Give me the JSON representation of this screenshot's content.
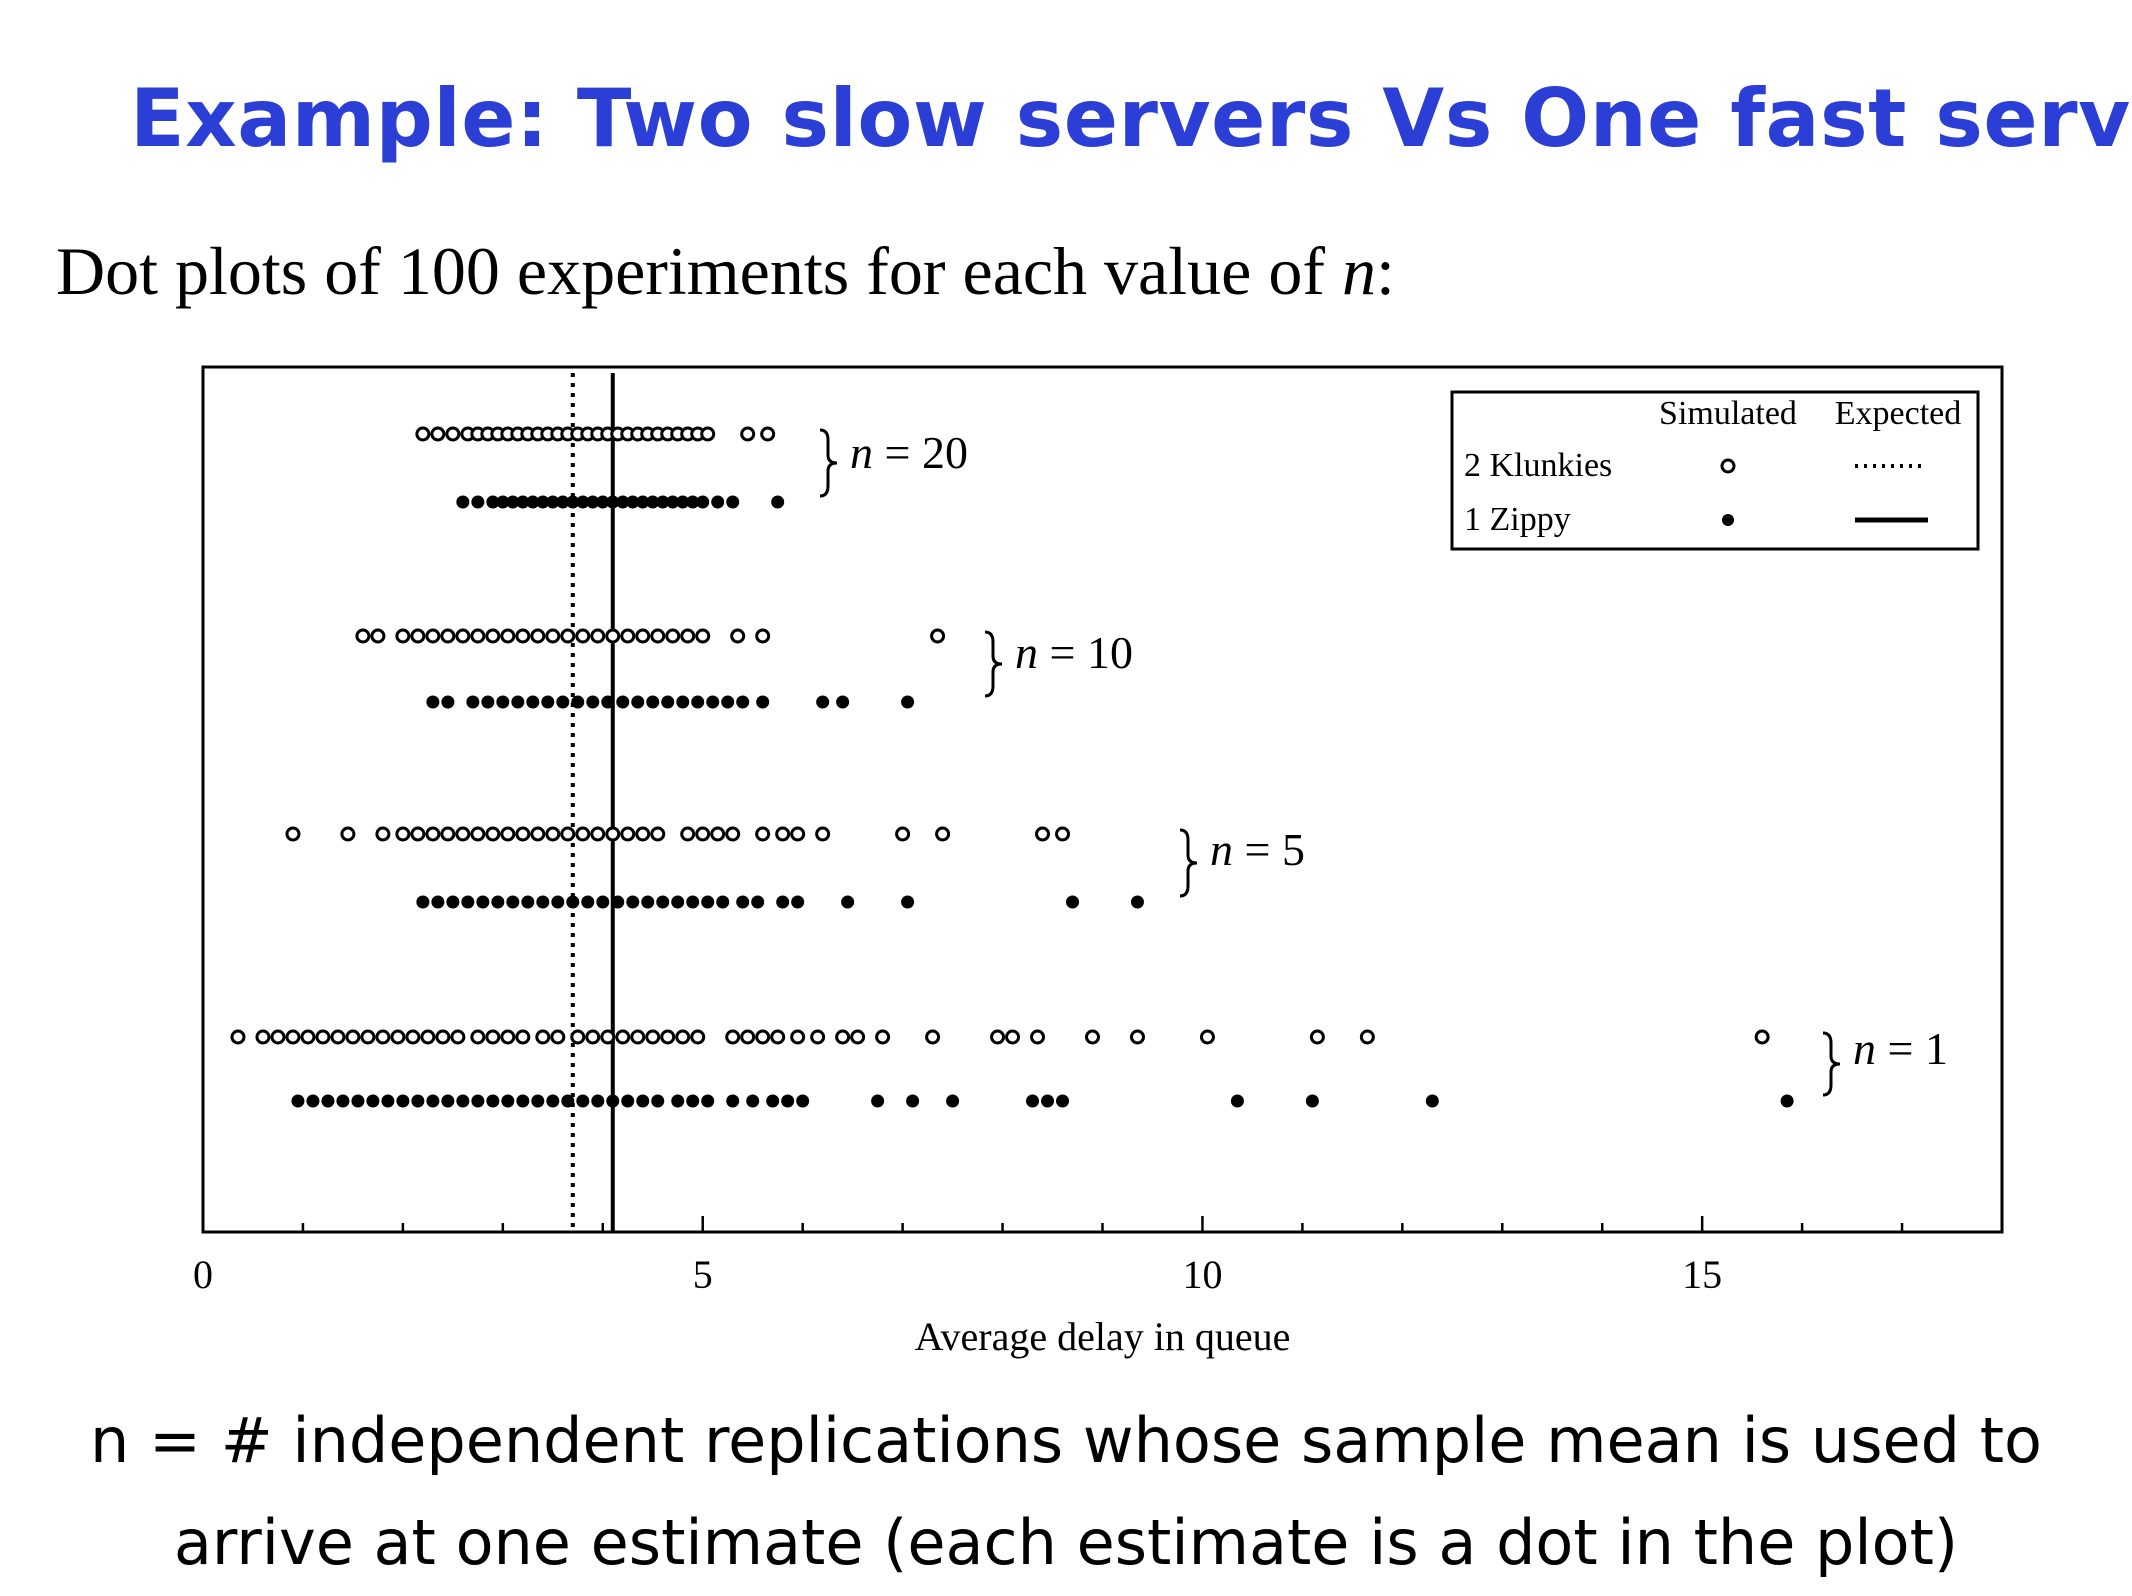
{
  "title": "Example: Two slow servers Vs One fast server",
  "subtitle": {
    "text": "Dot plots of 100 experiments for each value of ",
    "var": "n",
    "suffix": ":"
  },
  "footnote": {
    "line1": "n = # independent replications whose sample mean is used to",
    "line2": "arrive at one estimate (each estimate is a dot in the plot)"
  },
  "chart_data": {
    "type": "scatter",
    "xlabel": "Average delay in queue",
    "xlim": [
      0,
      18
    ],
    "xticks": [
      0,
      5,
      10,
      15
    ],
    "legend": {
      "position": "top-right",
      "header_simulated": "Simulated",
      "header_expected": "Expected",
      "entries": [
        {
          "label": "2 Klunkies",
          "marker": "open-circle",
          "line": "dotted"
        },
        {
          "label": "1 Zippy",
          "marker": "filled-circle",
          "line": "solid"
        }
      ]
    },
    "expected": {
      "2 Klunkies": 3.7,
      "1 Zippy": 4.1
    },
    "groups": [
      {
        "label": "n = 20",
        "klunkies": [
          2.2,
          2.35,
          2.5,
          2.65,
          2.75,
          2.85,
          2.95,
          3.05,
          3.15,
          3.25,
          3.35,
          3.45,
          3.55,
          3.65,
          3.75,
          3.85,
          3.95,
          4.05,
          4.15,
          4.25,
          4.35,
          4.45,
          4.55,
          4.65,
          4.75,
          4.85,
          4.95,
          5.05,
          5.45,
          5.65
        ],
        "zippy": [
          2.6,
          2.75,
          2.9,
          3.0,
          3.1,
          3.2,
          3.3,
          3.4,
          3.5,
          3.6,
          3.7,
          3.8,
          3.9,
          4.0,
          4.1,
          4.2,
          4.3,
          4.4,
          4.5,
          4.6,
          4.7,
          4.8,
          4.9,
          5.0,
          5.15,
          5.3,
          5.75
        ]
      },
      {
        "label": "n = 10",
        "klunkies": [
          1.6,
          1.75,
          2.0,
          2.15,
          2.3,
          2.45,
          2.6,
          2.75,
          2.9,
          3.05,
          3.2,
          3.35,
          3.5,
          3.65,
          3.8,
          3.95,
          4.1,
          4.25,
          4.4,
          4.55,
          4.7,
          4.85,
          5.0,
          5.35,
          5.6,
          7.35
        ],
        "zippy": [
          2.3,
          2.45,
          2.7,
          2.85,
          3.0,
          3.15,
          3.3,
          3.45,
          3.6,
          3.75,
          3.9,
          4.05,
          4.2,
          4.35,
          4.5,
          4.65,
          4.8,
          4.95,
          5.1,
          5.25,
          5.4,
          5.6,
          6.2,
          6.4,
          7.05
        ]
      },
      {
        "label": "n = 5",
        "klunkies": [
          0.9,
          1.45,
          1.8,
          2.0,
          2.15,
          2.3,
          2.45,
          2.6,
          2.75,
          2.9,
          3.05,
          3.2,
          3.35,
          3.5,
          3.65,
          3.8,
          3.95,
          4.1,
          4.25,
          4.4,
          4.55,
          4.85,
          5.0,
          5.15,
          5.3,
          5.6,
          5.8,
          5.95,
          6.2,
          7.0,
          7.4,
          8.4,
          8.6
        ],
        "zippy": [
          2.2,
          2.35,
          2.5,
          2.65,
          2.8,
          2.95,
          3.1,
          3.25,
          3.4,
          3.55,
          3.7,
          3.85,
          4.0,
          4.15,
          4.3,
          4.45,
          4.6,
          4.75,
          4.9,
          5.05,
          5.2,
          5.4,
          5.55,
          5.8,
          5.95,
          6.45,
          7.05,
          8.7,
          9.35
        ]
      },
      {
        "label": "n = 1",
        "klunkies": [
          0.35,
          0.6,
          0.75,
          0.9,
          1.05,
          1.2,
          1.35,
          1.5,
          1.65,
          1.8,
          1.95,
          2.1,
          2.25,
          2.4,
          2.55,
          2.75,
          2.9,
          3.05,
          3.2,
          3.4,
          3.55,
          3.75,
          3.9,
          4.05,
          4.2,
          4.35,
          4.5,
          4.65,
          4.8,
          4.95,
          5.3,
          5.45,
          5.6,
          5.75,
          5.95,
          6.15,
          6.4,
          6.55,
          6.8,
          7.3,
          7.95,
          8.1,
          8.35,
          8.9,
          9.35,
          10.05,
          11.15,
          11.65,
          15.6
        ],
        "zippy": [
          0.95,
          1.1,
          1.25,
          1.4,
          1.55,
          1.7,
          1.85,
          2.0,
          2.15,
          2.3,
          2.45,
          2.6,
          2.75,
          2.9,
          3.05,
          3.2,
          3.35,
          3.5,
          3.65,
          3.8,
          3.95,
          4.1,
          4.25,
          4.4,
          4.55,
          4.75,
          4.9,
          5.05,
          5.3,
          5.5,
          5.7,
          5.85,
          6.0,
          6.75,
          7.1,
          7.5,
          8.3,
          8.45,
          8.6,
          10.35,
          11.1,
          12.3,
          15.85
        ]
      }
    ]
  }
}
